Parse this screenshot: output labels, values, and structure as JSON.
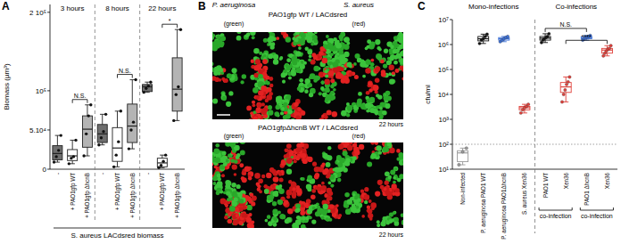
{
  "chart_data": [
    {
      "type": "box",
      "panel_label": "A",
      "y_label": "Biomass (µm³)",
      "x_label": "S. aureus LACdsred biomass",
      "categories": [
        "-",
        "+ PAO1gfp WT",
        "+ PAO1gfp ΔhcnB",
        "-",
        "+ PAO1gfp WT",
        "+ PAO1gfp ΔhcnB",
        "-",
        "+ PAO1gfp WT",
        "+ PAO1gfp ΔhcnB"
      ],
      "groups": [
        {
          "label": "3 hours",
          "size": 3
        },
        {
          "label": "8 hours",
          "size": 3
        },
        {
          "label": "22 hours",
          "size": 3
        }
      ],
      "colors": [
        "#6e6e6e",
        "#ffffff",
        "#b4b4b4",
        "#6e6e6e",
        "#ffffff",
        "#b4b4b4",
        "#6e6e6e",
        "#ffffff",
        "#b4b4b4"
      ],
      "boxes": [
        {
          "min": 9000,
          "q1": 12000,
          "median": 20000,
          "q3": 30000,
          "max": 43000,
          "points": [
            9000,
            16000,
            24000,
            43000
          ]
        },
        {
          "min": 7000,
          "q1": 11000,
          "median": 17000,
          "q3": 25000,
          "max": 37000,
          "points": [
            7000,
            14000,
            16000,
            37000
          ]
        },
        {
          "min": 17000,
          "q1": 28000,
          "median": 51000,
          "q3": 68000,
          "max": 82000,
          "points": [
            17000,
            45000,
            68000,
            82000
          ]
        },
        {
          "min": 31000,
          "q1": 34000,
          "median": 45000,
          "q3": 57000,
          "max": 70000,
          "points": [
            31000,
            40000,
            48000,
            70000
          ]
        },
        {
          "min": 3000,
          "q1": 10000,
          "median": 27000,
          "q3": 53000,
          "max": 74000,
          "points": [
            3000,
            18000,
            35000,
            74000
          ]
        },
        {
          "min": 26000,
          "q1": 34000,
          "median": 55000,
          "q3": 83000,
          "max": 114000,
          "points": [
            26000,
            50000,
            60000,
            114000
          ]
        },
        {
          "min": 98000,
          "q1": 99000,
          "median": 105000,
          "q3": 108000,
          "max": 111000,
          "points": [
            98000,
            103000,
            106000,
            111000
          ]
        },
        {
          "min": 2000,
          "q1": 3000,
          "median": 8000,
          "q3": 14000,
          "max": 18000,
          "points": [
            2000,
            5000,
            10000,
            18000
          ]
        },
        {
          "min": 62000,
          "q1": 74000,
          "median": 102000,
          "q3": 142000,
          "max": 178000,
          "points": [
            62000,
            95000,
            105000,
            178000
          ]
        }
      ],
      "ylim": [
        0,
        210000
      ],
      "yticks": [
        0,
        {
          "value": 50000,
          "label": "5.10⁴"
        },
        {
          "value": 100000,
          "label": "10⁵"
        },
        {
          "value": 200000,
          "label": "2 10⁵"
        }
      ],
      "significance": [
        {
          "from": 1,
          "to": 2,
          "label": "N.S."
        },
        {
          "from": 4,
          "to": 5,
          "label": "N.S."
        },
        {
          "from": 7,
          "to": 8,
          "label": "*"
        }
      ]
    },
    {
      "type": "box",
      "panel_label": "C",
      "log": "y",
      "y_label": "cfu/ml",
      "categories": [
        "Non-infected",
        "P. aeruginosa PAO1 WT",
        "P. aeruginosa PAO1ΔhcnB",
        "S. aureus Xen36",
        "PAO1 WT",
        "Xen36",
        "PAO1 ΔhcnB",
        "Xen36"
      ],
      "groups": [
        {
          "label": "Mono-infections",
          "size": 4
        },
        {
          "label": "Co-infections",
          "size": 4
        }
      ],
      "brackets_below": [
        {
          "label": "co-infection",
          "from": 4,
          "to": 5
        },
        {
          "label": "co-infection",
          "from": 6,
          "to": 7
        }
      ],
      "detection_limit": 100,
      "colors": [
        "#9a9a9a",
        "#111111",
        "#3b6fd6",
        "#e0403a",
        "#111111",
        "#e0403a",
        "#3b6fd6",
        "#e0403a"
      ],
      "boxes": [
        {
          "min": 15,
          "q1": 20,
          "median": 45,
          "q3": 55,
          "max": 70,
          "points": [
            15,
            50,
            70
          ]
        },
        {
          "min": 1100000,
          "q1": 1400000,
          "median": 1700000,
          "q3": 2100000,
          "max": 2600000,
          "points": [
            1100000,
            1500000,
            1700000,
            2100000,
            2600000
          ]
        },
        {
          "min": 1300000,
          "q1": 1500000,
          "median": 1700000,
          "q3": 1900000,
          "max": 2100000,
          "points": [
            1300000,
            1500000,
            1700000,
            1900000,
            2100000
          ]
        },
        {
          "min": 1800,
          "q1": 2400,
          "median": 2900,
          "q3": 3300,
          "max": 4000,
          "points": [
            1800,
            2400,
            2900,
            3300,
            4000
          ]
        },
        {
          "min": 1200000,
          "q1": 1500000,
          "median": 1800000,
          "q3": 2100000,
          "max": 2700000,
          "points": [
            1200000,
            1500000,
            1700000,
            1900000,
            2100000,
            2700000
          ]
        },
        {
          "min": 5000,
          "q1": 12000,
          "median": 20000,
          "q3": 30000,
          "max": 50000,
          "points": [
            5000,
            10000,
            15000,
            25000,
            32000,
            50000
          ]
        },
        {
          "min": 1500000,
          "q1": 1700000,
          "median": 1900000,
          "q3": 2100000,
          "max": 2300000,
          "points": [
            1500000,
            1700000,
            1900000,
            2000000,
            2100000,
            2300000
          ]
        },
        {
          "min": 350000,
          "q1": 450000,
          "median": 600000,
          "q3": 700000,
          "max": 900000,
          "points": [
            350000,
            450000,
            550000,
            650000,
            700000,
            900000
          ]
        }
      ],
      "ylim": [
        10,
        10000000
      ],
      "yticks": [
        {
          "value": 10,
          "label": "10¹"
        },
        {
          "value": 100,
          "label": "10²"
        },
        {
          "value": 1000,
          "label": "10³"
        },
        {
          "value": 10000,
          "label": "10⁴"
        },
        {
          "value": 100000,
          "label": "10⁵"
        },
        {
          "value": 1000000,
          "label": "10⁶"
        },
        {
          "value": 10000000,
          "label": "10⁷"
        }
      ],
      "significance": [
        {
          "from": 4,
          "to": 6,
          "label": "N.S."
        },
        {
          "from": 5,
          "to": 7,
          "label": "****"
        }
      ]
    }
  ],
  "image_panel": {
    "panel_label": "B",
    "species": [
      "P. aeruginosa",
      "S. aureus"
    ],
    "images": [
      {
        "strains": "PAO1gfp WT / LACdsred",
        "channels": [
          "(green)",
          "(red)"
        ],
        "time": "22 hours"
      },
      {
        "strains": "PAO1gfpΔhcnB WT / LACdsred",
        "channels": [
          "(green)",
          "(red)"
        ],
        "time": "22 hours"
      }
    ]
  }
}
